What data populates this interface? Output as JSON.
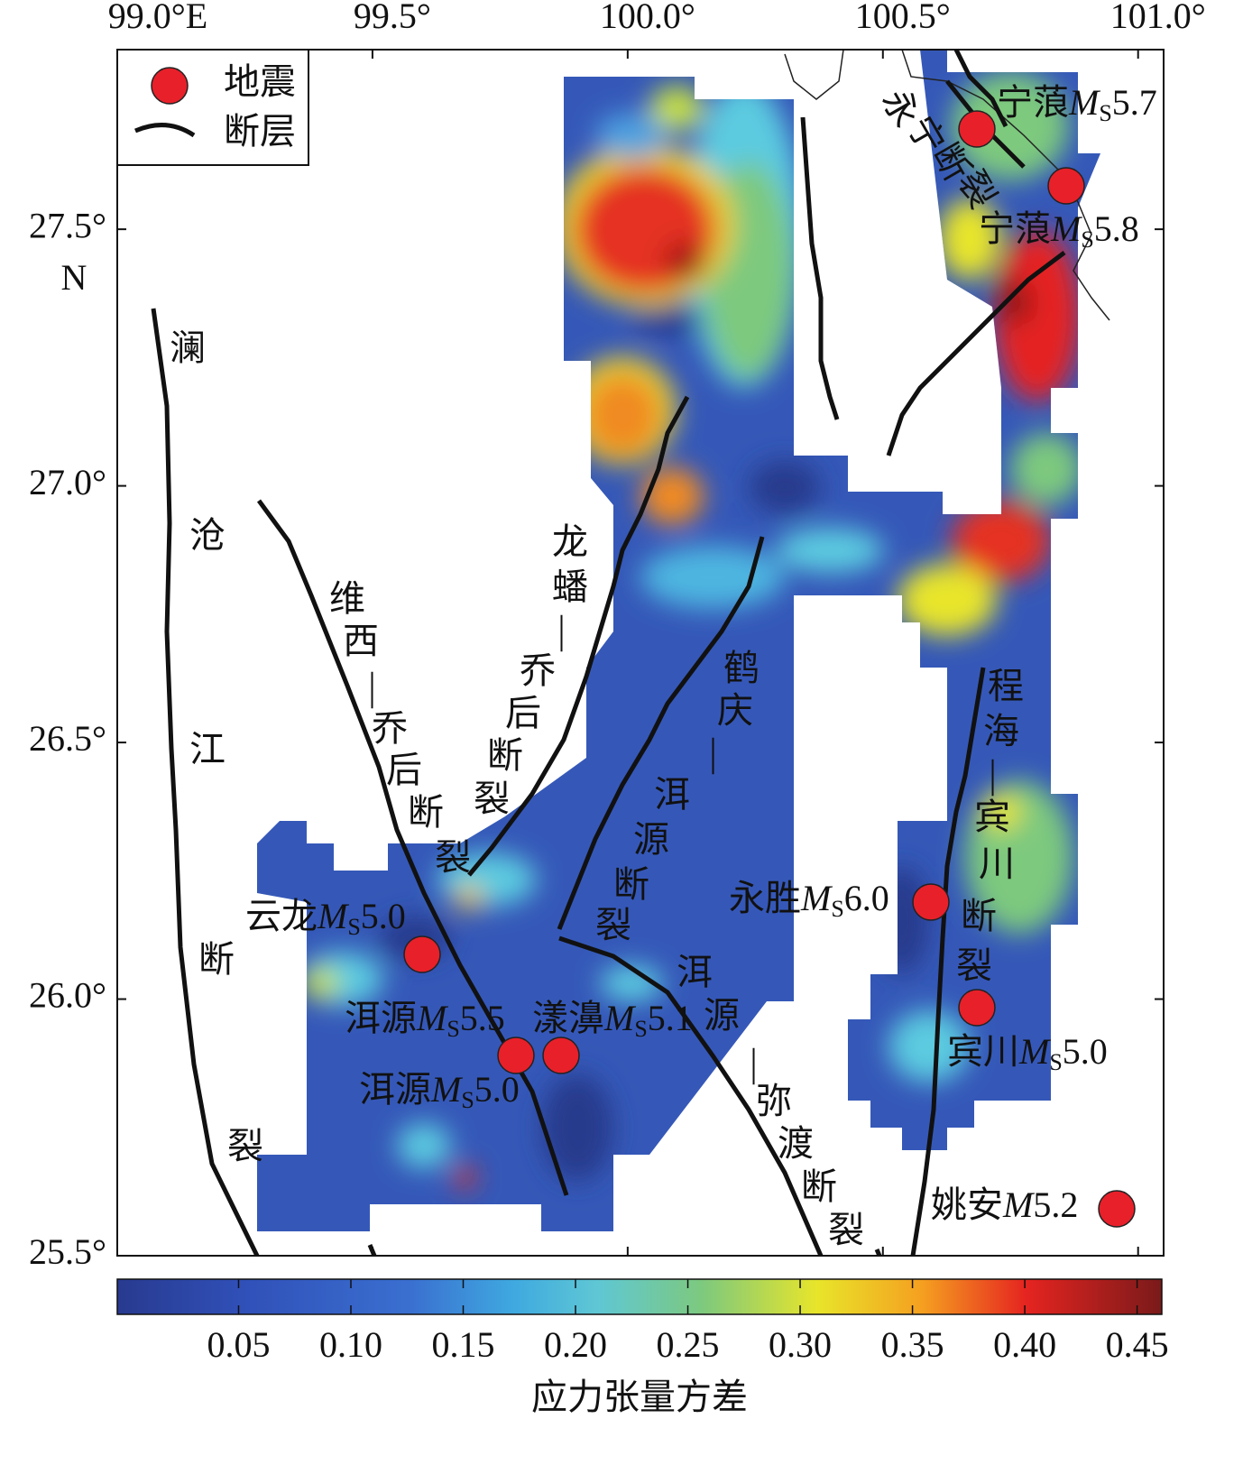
{
  "map": {
    "x_axis": {
      "lim": [
        99.0,
        101.05
      ],
      "ticks": [
        {
          "value": 99.0,
          "label": "99.0°E"
        },
        {
          "value": 99.5,
          "label": "99.5°"
        },
        {
          "value": 100.0,
          "label": "100.0°"
        },
        {
          "value": 100.5,
          "label": "100.5°"
        },
        {
          "value": 101.0,
          "label": "101.0°"
        }
      ]
    },
    "y_axis": {
      "lim": [
        25.5,
        27.85
      ],
      "ticks": [
        {
          "value": 25.5,
          "label": "25.5°"
        },
        {
          "value": 26.0,
          "label": "26.0°"
        },
        {
          "value": 26.5,
          "label": "26.5°"
        },
        {
          "value": 27.0,
          "label": "27.0°"
        },
        {
          "value": 27.5,
          "label": "27.5°"
        }
      ],
      "hemisphere": "N"
    },
    "legend": {
      "earthquake": "地震",
      "fault": "断层"
    },
    "faults": [
      {
        "label": [
          "澜",
          "沧",
          "江",
          "断",
          "裂"
        ]
      },
      {
        "label": [
          "维",
          "西",
          "—",
          "乔",
          "后",
          "断",
          "裂"
        ]
      },
      {
        "label": [
          "龙",
          "蟠",
          "—",
          "乔",
          "后",
          "断",
          "裂"
        ]
      },
      {
        "label": [
          "鹤",
          "庆",
          "—",
          "洱",
          "源",
          "断",
          "裂"
        ]
      },
      {
        "label": [
          "洱",
          "源",
          "—",
          "弥",
          "渡",
          "断",
          "裂"
        ]
      },
      {
        "label": [
          "程",
          "海",
          "—",
          "宾",
          "川",
          "断",
          "裂"
        ]
      },
      {
        "label": [
          "永",
          "宁",
          "断",
          "裂"
        ]
      }
    ],
    "earthquakes": [
      {
        "place": "宁蒗",
        "symbol": "M",
        "subscript": "S",
        "magnitude": "5.7"
      },
      {
        "place": "宁蒗",
        "symbol": "M",
        "subscript": "S",
        "magnitude": "5.8"
      },
      {
        "place": "云龙",
        "symbol": "M",
        "subscript": "S",
        "magnitude": "5.0"
      },
      {
        "place": "洱源",
        "symbol": "M",
        "subscript": "S",
        "magnitude": "5.5"
      },
      {
        "place": "漾濞",
        "symbol": "M",
        "subscript": "S",
        "magnitude": "5.1"
      },
      {
        "place": "洱源",
        "symbol": "M",
        "subscript": "S",
        "magnitude": "5.0"
      },
      {
        "place": "永胜",
        "symbol": "M",
        "subscript": "S",
        "magnitude": "6.0"
      },
      {
        "place": "宾川",
        "symbol": "M",
        "subscript": "S",
        "magnitude": "5.0"
      },
      {
        "place": "姚安",
        "symbol": "M",
        "subscript": null,
        "magnitude": "5.2"
      }
    ],
    "colorbar": {
      "label": "应力张量方差",
      "lim": [
        -0.004,
        0.461
      ],
      "ticks": [
        0.05,
        {
          "value": 0.1,
          "label": "0.10"
        },
        0.15,
        {
          "value": 0.2,
          "label": "0.20"
        },
        0.25,
        {
          "value": 0.3,
          "label": "0.30"
        },
        0.35,
        {
          "value": 0.4,
          "label": "0.40"
        },
        0.45
      ]
    }
  }
}
